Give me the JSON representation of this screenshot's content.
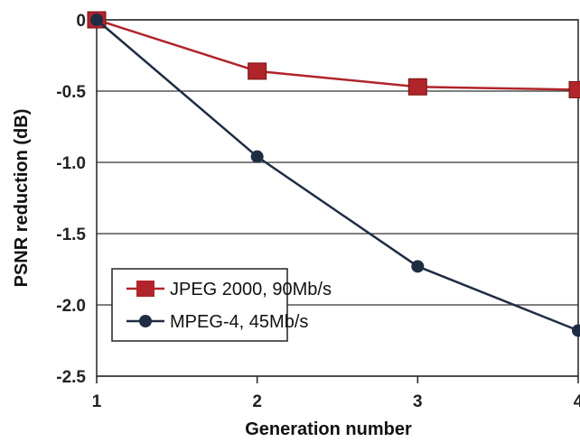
{
  "chart_data": {
    "type": "line",
    "title": "",
    "xlabel": "Generation number",
    "ylabel": "PSNR reduction (dB)",
    "x": [
      1,
      2,
      3,
      4
    ],
    "x_tick_labels": [
      "1",
      "2",
      "3",
      "4"
    ],
    "xlim": [
      1,
      4
    ],
    "ylim": [
      -2.5,
      0
    ],
    "y_ticks": [
      0,
      -0.5,
      -1.0,
      -1.5,
      -2.0,
      -2.5
    ],
    "y_tick_labels": [
      "0",
      "-0.5",
      "-1.0",
      "-1.5",
      "-2.0",
      "-2.5"
    ],
    "grid": "horizontal",
    "legend_position": "bottom-left",
    "series": [
      {
        "name": "JPEG 2000, 90Mb/s",
        "values": [
          0,
          -0.36,
          -0.47,
          -0.49
        ],
        "color": "#b0252a",
        "marker": "square"
      },
      {
        "name": "MPEG-4, 45Mb/s",
        "values": [
          0,
          -0.96,
          -1.73,
          -2.18
        ],
        "color": "#1f2d44",
        "marker": "circle"
      }
    ]
  }
}
